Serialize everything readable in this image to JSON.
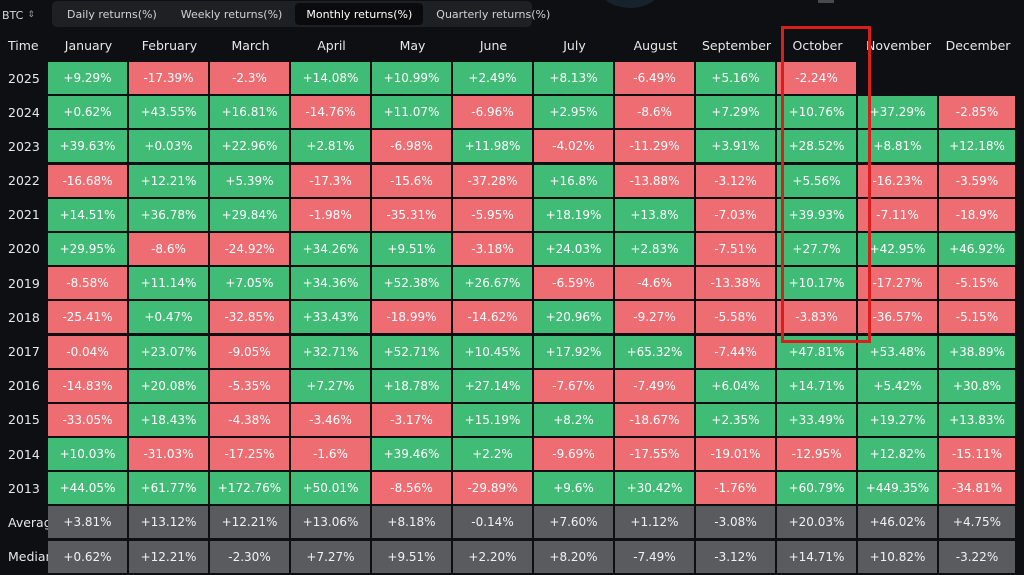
{
  "asset": {
    "label": "BTC",
    "chevron": "⇕"
  },
  "tabs": [
    {
      "label": "Daily returns(%)",
      "active": false
    },
    {
      "label": "Weekly returns(%)",
      "active": false
    },
    {
      "label": "Monthly returns(%)",
      "active": true
    },
    {
      "label": "Quarterly returns(%)",
      "active": false
    }
  ],
  "table": {
    "time_header": "Time",
    "months": [
      "January",
      "February",
      "March",
      "April",
      "May",
      "June",
      "July",
      "August",
      "September",
      "October",
      "November",
      "December"
    ],
    "rows": [
      {
        "label": "2025",
        "values": [
          "+9.29%",
          "-17.39%",
          "-2.3%",
          "+14.08%",
          "+10.99%",
          "+2.49%",
          "+8.13%",
          "-6.49%",
          "+5.16%",
          "-2.24%",
          "",
          ""
        ]
      },
      {
        "label": "2024",
        "values": [
          "+0.62%",
          "+43.55%",
          "+16.81%",
          "-14.76%",
          "+11.07%",
          "-6.96%",
          "+2.95%",
          "-8.6%",
          "+7.29%",
          "+10.76%",
          "+37.29%",
          "-2.85%"
        ]
      },
      {
        "label": "2023",
        "values": [
          "+39.63%",
          "+0.03%",
          "+22.96%",
          "+2.81%",
          "-6.98%",
          "+11.98%",
          "-4.02%",
          "-11.29%",
          "+3.91%",
          "+28.52%",
          "+8.81%",
          "+12.18%"
        ]
      },
      {
        "label": "2022",
        "values": [
          "-16.68%",
          "+12.21%",
          "+5.39%",
          "-17.3%",
          "-15.6%",
          "-37.28%",
          "+16.8%",
          "-13.88%",
          "-3.12%",
          "+5.56%",
          "-16.23%",
          "-3.59%"
        ]
      },
      {
        "label": "2021",
        "values": [
          "+14.51%",
          "+36.78%",
          "+29.84%",
          "-1.98%",
          "-35.31%",
          "-5.95%",
          "+18.19%",
          "+13.8%",
          "-7.03%",
          "+39.93%",
          "-7.11%",
          "-18.9%"
        ]
      },
      {
        "label": "2020",
        "values": [
          "+29.95%",
          "-8.6%",
          "-24.92%",
          "+34.26%",
          "+9.51%",
          "-3.18%",
          "+24.03%",
          "+2.83%",
          "-7.51%",
          "+27.7%",
          "+42.95%",
          "+46.92%"
        ]
      },
      {
        "label": "2019",
        "values": [
          "-8.58%",
          "+11.14%",
          "+7.05%",
          "+34.36%",
          "+52.38%",
          "+26.67%",
          "-6.59%",
          "-4.6%",
          "-13.38%",
          "+10.17%",
          "-17.27%",
          "-5.15%"
        ]
      },
      {
        "label": "2018",
        "values": [
          "-25.41%",
          "+0.47%",
          "-32.85%",
          "+33.43%",
          "-18.99%",
          "-14.62%",
          "+20.96%",
          "-9.27%",
          "-5.58%",
          "-3.83%",
          "-36.57%",
          "-5.15%"
        ]
      },
      {
        "label": "2017",
        "values": [
          "-0.04%",
          "+23.07%",
          "-9.05%",
          "+32.71%",
          "+52.71%",
          "+10.45%",
          "+17.92%",
          "+65.32%",
          "-7.44%",
          "+47.81%",
          "+53.48%",
          "+38.89%"
        ]
      },
      {
        "label": "2016",
        "values": [
          "-14.83%",
          "+20.08%",
          "-5.35%",
          "+7.27%",
          "+18.78%",
          "+27.14%",
          "-7.67%",
          "-7.49%",
          "+6.04%",
          "+14.71%",
          "+5.42%",
          "+30.8%"
        ]
      },
      {
        "label": "2015",
        "values": [
          "-33.05%",
          "+18.43%",
          "-4.38%",
          "-3.46%",
          "-3.17%",
          "+15.19%",
          "+8.2%",
          "-18.67%",
          "+2.35%",
          "+33.49%",
          "+19.27%",
          "+13.83%"
        ]
      },
      {
        "label": "2014",
        "values": [
          "+10.03%",
          "-31.03%",
          "-17.25%",
          "-1.6%",
          "+39.46%",
          "+2.2%",
          "-9.69%",
          "-17.55%",
          "-19.01%",
          "-12.95%",
          "+12.82%",
          "-15.11%"
        ]
      },
      {
        "label": "2013",
        "values": [
          "+44.05%",
          "+61.77%",
          "+172.76%",
          "+50.01%",
          "-8.56%",
          "-29.89%",
          "+9.6%",
          "+30.42%",
          "-1.76%",
          "+60.79%",
          "+449.35%",
          "-34.81%"
        ]
      }
    ],
    "summary": [
      {
        "label": "Average",
        "values": [
          "+3.81%",
          "+13.12%",
          "+12.21%",
          "+13.06%",
          "+8.18%",
          "-0.14%",
          "+7.60%",
          "+1.12%",
          "-3.08%",
          "+20.03%",
          "+46.02%",
          "+4.75%"
        ]
      },
      {
        "label": "Median",
        "values": [
          "+0.62%",
          "+12.21%",
          "-2.30%",
          "+7.27%",
          "+9.51%",
          "+2.20%",
          "+8.20%",
          "-7.49%",
          "-3.12%",
          "+14.71%",
          "+10.82%",
          "-3.22%"
        ]
      }
    ]
  },
  "colors": {
    "positive": "#40bc76",
    "negative": "#ee6d73",
    "summary": "#5a5b5f",
    "highlight": "#d81e1e"
  },
  "highlighted_month": "October"
}
